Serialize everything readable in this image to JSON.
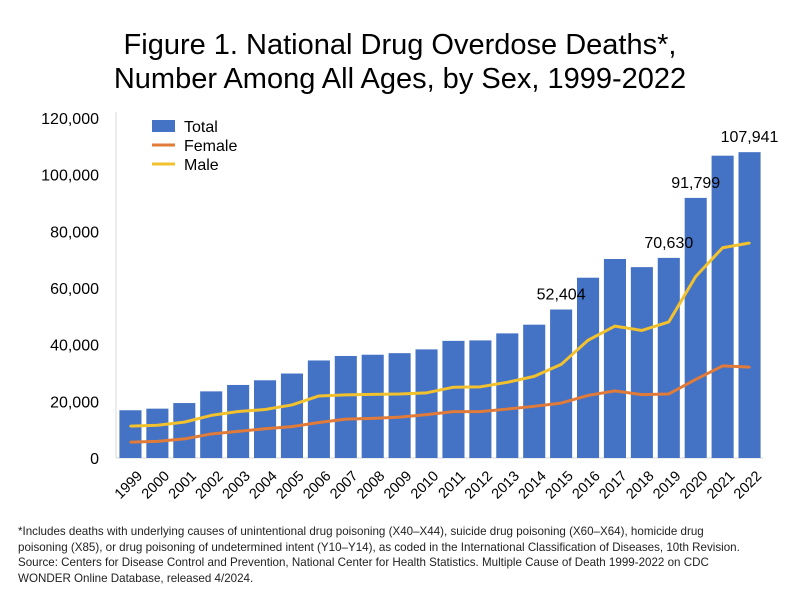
{
  "chart_data": {
    "type": "bar",
    "title": "Figure 1. National Drug Overdose Deaths*, Number Among All Ages, by Sex, 1999-2022",
    "title_lines": [
      "Figure 1. National Drug Overdose Deaths*,",
      "Number Among All Ages, by Sex, 1999-2022"
    ],
    "xlabel": "",
    "ylabel": "",
    "ylim": [
      0,
      120000
    ],
    "yticks": [
      "0",
      "20,000",
      "40,000",
      "60,000",
      "80,000",
      "100,000",
      "120,000"
    ],
    "grid": false,
    "legend_position": "top-left",
    "categories": [
      "1999",
      "2000",
      "2001",
      "2002",
      "2003",
      "2004",
      "2005",
      "2006",
      "2007",
      "2008",
      "2009",
      "2010",
      "2011",
      "2012",
      "2013",
      "2014",
      "2015",
      "2016",
      "2017",
      "2018",
      "2019",
      "2020",
      "2021",
      "2022"
    ],
    "series": [
      {
        "name": "Total",
        "kind": "bar",
        "color": "#4472c4",
        "values": [
          16849,
          17415,
          19394,
          23518,
          25785,
          27424,
          29813,
          34425,
          36010,
          36450,
          37004,
          38329,
          41340,
          41502,
          43982,
          47055,
          52404,
          63632,
          70237,
          67367,
          70630,
          91799,
          106699,
          107941
        ]
      },
      {
        "name": "Female",
        "kind": "line",
        "color": "#e07b39",
        "values": [
          5591,
          5852,
          6736,
          8490,
          9386,
          10304,
          11089,
          12532,
          13712,
          13982,
          14411,
          15323,
          16352,
          16379,
          17271,
          18243,
          19379,
          22074,
          23685,
          22358,
          22608,
          27729,
          32501,
          32072
        ]
      },
      {
        "name": "Male",
        "kind": "line",
        "color": "#f2c12e",
        "values": [
          11258,
          11563,
          12658,
          15028,
          16399,
          17120,
          18724,
          21893,
          22298,
          22468,
          22593,
          23006,
          24988,
          25123,
          26711,
          28812,
          33025,
          41558,
          46552,
          45009,
          48022,
          64070,
          74198,
          75869
        ]
      }
    ],
    "data_labels": [
      {
        "category": "2015",
        "text": "52,404"
      },
      {
        "category": "2019",
        "text": "70,630"
      },
      {
        "category": "2020",
        "text": "91,799"
      },
      {
        "category": "2022",
        "text": "107,941"
      }
    ]
  },
  "footnote": [
    "*Includes deaths with underlying causes of unintentional drug poisoning (X40–X44), suicide drug poisoning (X60–X64), homicide drug",
    "poisoning (X85), or drug poisoning of undetermined intent (Y10–Y14), as coded in the International Classification of Diseases, 10th Revision.",
    "Source: Centers for Disease Control and Prevention, National Center for Health Statistics. Multiple Cause of Death 1999-2022 on CDC",
    "WONDER Online Database, released 4/2024."
  ]
}
